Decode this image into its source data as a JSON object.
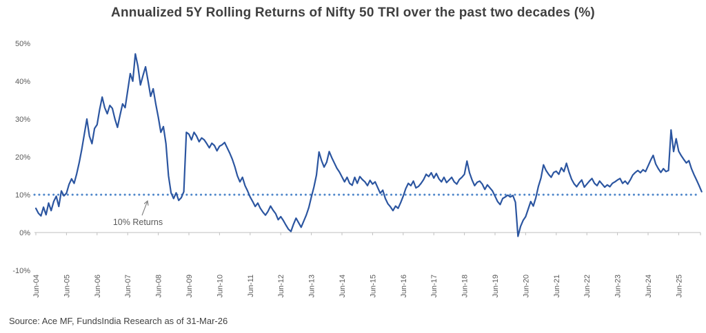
{
  "header": {
    "title": "Annualized 5Y Rolling Returns of Nifty 50 TRI over the past two decades (%)"
  },
  "footer": {
    "source": "Source: Ace MF, FundsIndia Research as of 31-Mar-26"
  },
  "chart_data": {
    "type": "line",
    "title": "Annualized 5Y Rolling Returns of Nifty 50 TRI over the past two decades (%)",
    "xlabel": "",
    "ylabel": "",
    "ylim": [
      -10,
      50
    ],
    "grid": "off",
    "legend": "none",
    "y_tick_labels": [
      "50%",
      "40%",
      "30%",
      "20%",
      "10%",
      "0%",
      "-10%"
    ],
    "y_tick_values": [
      50,
      40,
      30,
      20,
      10,
      0,
      -10
    ],
    "x_tick_labels": [
      "Jun-04",
      "Jun-05",
      "Jun-06",
      "Jun-07",
      "Jun-08",
      "Jun-09",
      "Jun-10",
      "Jun-11",
      "Jun-12",
      "Jun-13",
      "Jun-14",
      "Jun-15",
      "Jun-16",
      "Jun-17",
      "Jun-18",
      "Jun-19",
      "Jun-20",
      "Jun-21",
      "Jun-22",
      "Jun-23",
      "Jun-24",
      "Jun-25"
    ],
    "x_frequency": "monthly",
    "x_start": "Jun-2004",
    "x_end": "Mar-2026",
    "reference_line": {
      "value": 10,
      "style": "dotted",
      "color": "#4e86ca"
    },
    "annotation": {
      "text": "10% Returns"
    },
    "series": [
      {
        "name": "5Y rolling return (%)",
        "color": "#2b55a0",
        "values": [
          6.4,
          5.1,
          4.4,
          6.7,
          4.7,
          7.8,
          5.8,
          8.2,
          9.6,
          6.9,
          11.0,
          9.7,
          10.4,
          12.7,
          14.2,
          13.0,
          15.5,
          18.5,
          22.0,
          26.0,
          30.0,
          25.5,
          23.5,
          27.5,
          28.5,
          32.5,
          35.8,
          33.0,
          31.4,
          33.6,
          32.8,
          30.0,
          27.8,
          31.0,
          34.0,
          33.0,
          37.5,
          42.0,
          40.0,
          47.2,
          44.0,
          39.0,
          41.5,
          43.8,
          40.0,
          36.0,
          38.0,
          34.0,
          30.5,
          26.5,
          28.0,
          23.5,
          15.0,
          10.5,
          9.0,
          10.5,
          8.5,
          9.2,
          10.8,
          26.5,
          26.0,
          24.5,
          26.5,
          25.5,
          24.0,
          25.0,
          24.5,
          23.5,
          22.4,
          23.6,
          23.0,
          21.6,
          22.8,
          23.2,
          23.8,
          22.4,
          21.0,
          19.4,
          17.4,
          15.0,
          13.4,
          14.6,
          12.4,
          11.0,
          9.4,
          8.2,
          6.9,
          7.8,
          6.4,
          5.4,
          4.6,
          5.6,
          7.0,
          5.9,
          5.0,
          3.4,
          4.2,
          3.2,
          2.0,
          0.9,
          0.3,
          2.2,
          3.8,
          2.6,
          1.4,
          3.0,
          4.6,
          6.6,
          9.4,
          12.0,
          15.2,
          21.3,
          19.0,
          17.3,
          18.6,
          21.4,
          19.8,
          18.4,
          17.0,
          16.0,
          14.7,
          13.4,
          14.6,
          13.0,
          12.5,
          14.6,
          13.0,
          14.8,
          14.0,
          13.4,
          12.4,
          13.8,
          12.8,
          13.4,
          11.9,
          10.4,
          11.2,
          9.0,
          7.6,
          6.8,
          5.8,
          7.0,
          6.4,
          7.9,
          9.6,
          11.6,
          13.0,
          12.4,
          13.6,
          11.8,
          12.2,
          13.0,
          14.0,
          15.4,
          14.8,
          15.8,
          14.4,
          15.6,
          14.2,
          13.4,
          14.6,
          13.2,
          13.9,
          14.6,
          13.4,
          12.8,
          14.0,
          14.6,
          15.4,
          18.9,
          15.8,
          13.9,
          12.4,
          13.3,
          13.6,
          12.8,
          11.4,
          12.6,
          11.8,
          11.0,
          9.6,
          8.2,
          7.4,
          9.0,
          9.4,
          9.9,
          9.4,
          9.8,
          8.0,
          -1.0,
          1.6,
          3.2,
          4.2,
          6.2,
          8.2,
          7.0,
          9.2,
          12.2,
          14.4,
          17.9,
          16.4,
          15.4,
          14.6,
          15.9,
          16.2,
          15.4,
          17.1,
          16.1,
          18.3,
          16.0,
          14.1,
          12.9,
          12.1,
          13.1,
          13.9,
          12.0,
          12.8,
          13.6,
          14.3,
          13.0,
          12.4,
          13.6,
          12.8,
          12.0,
          12.6,
          12.1,
          13.0,
          13.4,
          13.9,
          14.3,
          13.0,
          13.6,
          12.8,
          13.9,
          15.2,
          15.9,
          16.4,
          15.8,
          16.6,
          16.1,
          17.6,
          19.1,
          20.4,
          18.1,
          16.9,
          15.9,
          16.9,
          16.1,
          16.4,
          27.1,
          21.4,
          24.8,
          21.5,
          20.3,
          19.3,
          18.4,
          19.0,
          16.9,
          15.3,
          13.9,
          12.4,
          10.8
        ]
      }
    ],
    "axis_color": "#bfbfbf"
  }
}
